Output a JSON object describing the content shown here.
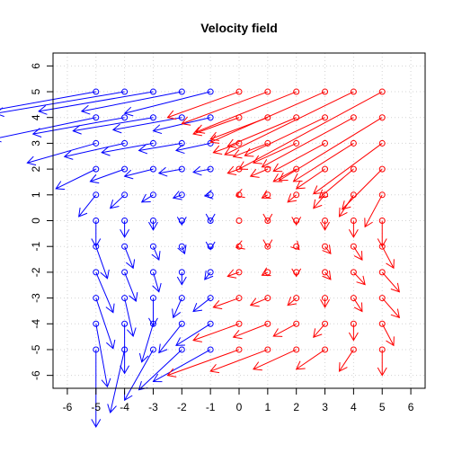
{
  "chart_data": {
    "type": "quiver",
    "title": "Velocity field",
    "xlabel": "",
    "ylabel": "",
    "xlim": [
      -6.5,
      6.5
    ],
    "ylim": [
      -6.5,
      6.5
    ],
    "x_ticks": [
      "-6",
      "-5",
      "-4",
      "-3",
      "-2",
      "-1",
      "0",
      "1",
      "2",
      "3",
      "4",
      "5",
      "6"
    ],
    "y_ticks": [
      "-6",
      "-5",
      "-4",
      "-3",
      "-2",
      "-1",
      "0",
      "1",
      "2",
      "3",
      "4",
      "5",
      "6"
    ],
    "grid": true,
    "grid_values": [
      -6,
      -5,
      -4,
      -3,
      -2,
      -1,
      0,
      1,
      2,
      3,
      4,
      5,
      6
    ],
    "arrow_scale": 0.2,
    "x": [
      -5,
      -4,
      -3,
      -2,
      -1,
      0,
      1,
      2,
      3,
      4,
      5
    ],
    "y": [
      -5,
      -4,
      -3,
      -2,
      -1,
      0,
      1,
      2,
      3,
      4,
      5
    ],
    "field": {
      "u": "y*(x-y)/2 for x<0, -y*(x+y)/2 for x>=0",
      "v": "(-x^2 - x*y - y^2)/5"
    },
    "series": [
      {
        "region": "x < 0",
        "color": "#0000ff"
      },
      {
        "region": "x >= 0",
        "color": "#ff0000"
      }
    ]
  }
}
